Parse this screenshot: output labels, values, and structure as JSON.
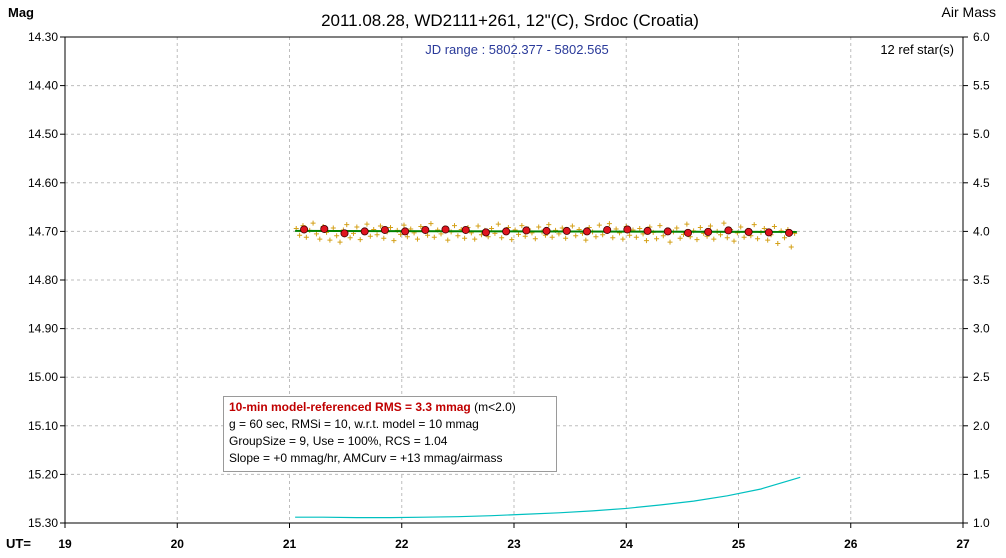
{
  "chart_data": {
    "type": "scatter",
    "title": "2011.08.28, WD2111+261, 12\"(C), Srdoc (Croatia)",
    "subtitle": "JD range : 5802.377 - 5802.565",
    "ref_stars": "12 ref star(s)",
    "ylabel": "Mag",
    "y2label": "Air Mass",
    "xlabel": "UT=",
    "xlim": [
      19,
      27
    ],
    "ylim": [
      14.3,
      15.3
    ],
    "y_inverted": true,
    "y2lim": [
      1.0,
      6.0
    ],
    "grid": true,
    "x_ticks": [
      "19",
      "20",
      "21",
      "22",
      "23",
      "24",
      "25",
      "26",
      "27"
    ],
    "y_ticks": [
      "14.30",
      "14.40",
      "14.50",
      "14.60",
      "14.70",
      "14.80",
      "14.90",
      "15.00",
      "15.10",
      "15.20",
      "15.30"
    ],
    "y2_ticks": [
      "6.0",
      "5.5",
      "5.0",
      "4.5",
      "4.0",
      "3.5",
      "3.0",
      "2.5",
      "2.0",
      "1.5",
      "1.0"
    ],
    "series": [
      {
        "kind": "raw",
        "color": "#d4a017",
        "x": [
          21.06,
          21.09,
          21.12,
          21.15,
          21.18,
          21.21,
          21.24,
          21.27,
          21.3,
          21.33,
          21.36,
          21.39,
          21.42,
          21.45,
          21.48,
          21.51,
          21.54,
          21.57,
          21.6,
          21.63,
          21.66,
          21.69,
          21.72,
          21.75,
          21.78,
          21.81,
          21.84,
          21.87,
          21.9,
          21.93,
          21.96,
          21.99,
          22.02,
          22.05,
          22.08,
          22.11,
          22.14,
          22.17,
          22.2,
          22.23,
          22.26,
          22.29,
          22.32,
          22.35,
          22.38,
          22.41,
          22.44,
          22.47,
          22.5,
          22.53,
          22.56,
          22.59,
          22.62,
          22.65,
          22.68,
          22.71,
          22.74,
          22.77,
          22.8,
          22.83,
          22.86,
          22.89,
          22.92,
          22.95,
          22.98,
          23.01,
          23.04,
          23.07,
          23.1,
          23.13,
          23.16,
          23.19,
          23.22,
          23.25,
          23.28,
          23.31,
          23.34,
          23.37,
          23.4,
          23.43,
          23.46,
          23.49,
          23.52,
          23.55,
          23.58,
          23.61,
          23.64,
          23.67,
          23.7,
          23.73,
          23.76,
          23.79,
          23.82,
          23.85,
          23.88,
          23.91,
          23.94,
          23.97,
          24.0,
          24.03,
          24.06,
          24.09,
          24.12,
          24.15,
          24.18,
          24.21,
          24.24,
          24.27,
          24.3,
          24.33,
          24.36,
          24.39,
          24.42,
          24.45,
          24.48,
          24.51,
          24.54,
          24.57,
          24.6,
          24.63,
          24.66,
          24.69,
          24.72,
          24.75,
          24.78,
          24.81,
          24.84,
          24.87,
          24.9,
          24.93,
          24.96,
          24.99,
          25.02,
          25.05,
          25.08,
          25.11,
          25.14,
          25.17,
          25.2,
          25.23,
          25.26,
          25.29,
          25.32,
          25.35,
          25.38,
          25.41,
          25.44,
          25.47,
          25.5
        ],
        "y": [
          14.694,
          14.708,
          14.688,
          14.712,
          14.698,
          14.683,
          14.705,
          14.716,
          14.69,
          14.702,
          14.718,
          14.693,
          14.709,
          14.722,
          14.697,
          14.686,
          14.713,
          14.704,
          14.691,
          14.717,
          14.7,
          14.685,
          14.71,
          14.696,
          14.707,
          14.689,
          14.714,
          14.701,
          14.692,
          14.719,
          14.698,
          14.706,
          14.687,
          14.711,
          14.695,
          14.703,
          14.716,
          14.69,
          14.699,
          14.708,
          14.684,
          14.712,
          14.697,
          14.705,
          14.693,
          14.718,
          14.701,
          14.688,
          14.709,
          14.696,
          14.714,
          14.692,
          14.703,
          14.716,
          14.689,
          14.707,
          14.698,
          14.711,
          14.694,
          14.704,
          14.685,
          14.713,
          14.7,
          14.692,
          14.717,
          14.697,
          14.706,
          14.688,
          14.71,
          14.695,
          14.703,
          14.715,
          14.691,
          14.701,
          14.708,
          14.686,
          14.712,
          14.698,
          14.705,
          14.693,
          14.714,
          14.7,
          14.689,
          14.709,
          14.696,
          14.704,
          14.718,
          14.692,
          14.701,
          14.711,
          14.687,
          14.707,
          14.699,
          14.684,
          14.713,
          14.695,
          14.703,
          14.716,
          14.69,
          14.708,
          14.697,
          14.712,
          14.694,
          14.705,
          14.719,
          14.691,
          14.702,
          14.715,
          14.688,
          14.709,
          14.698,
          14.722,
          14.701,
          14.693,
          14.714,
          14.706,
          14.685,
          14.711,
          14.699,
          14.717,
          14.692,
          14.704,
          14.71,
          14.689,
          14.716,
          14.7,
          14.707,
          14.683,
          14.713,
          14.696,
          14.72,
          14.703,
          14.691,
          14.712,
          14.698,
          14.709,
          14.686,
          14.715,
          14.702,
          14.694,
          14.718,
          14.707,
          14.69,
          14.725,
          14.699,
          14.713,
          14.696,
          14.732,
          14.704
        ]
      },
      {
        "kind": "binned",
        "color": "#e0141e",
        "x": [
          21.13,
          21.31,
          21.49,
          21.67,
          21.85,
          22.03,
          22.21,
          22.39,
          22.57,
          22.75,
          22.93,
          23.11,
          23.29,
          23.47,
          23.65,
          23.83,
          24.01,
          24.19,
          24.37,
          24.55,
          24.73,
          24.91,
          25.09,
          25.27,
          25.45
        ],
        "y": [
          14.696,
          14.695,
          14.704,
          14.7,
          14.697,
          14.7,
          14.697,
          14.696,
          14.697,
          14.702,
          14.7,
          14.698,
          14.699,
          14.699,
          14.7,
          14.697,
          14.696,
          14.699,
          14.7,
          14.703,
          14.701,
          14.698,
          14.701,
          14.702,
          14.703
        ]
      },
      {
        "kind": "model",
        "color": "#008000",
        "x": [
          21.05,
          25.52
        ],
        "y": [
          14.699,
          14.701
        ]
      },
      {
        "kind": "airmass",
        "color": "#00c0c0",
        "axis": "y2",
        "x": [
          21.05,
          21.3,
          21.6,
          21.9,
          22.2,
          22.5,
          22.8,
          23.1,
          23.4,
          23.7,
          24.0,
          24.3,
          24.6,
          24.9,
          25.2,
          25.55
        ],
        "y": [
          1.06,
          1.06,
          1.055,
          1.055,
          1.06,
          1.065,
          1.075,
          1.09,
          1.105,
          1.125,
          1.15,
          1.185,
          1.225,
          1.28,
          1.35,
          1.47
        ]
      }
    ]
  },
  "info_box": {
    "line1_highlight": "10-min model-referenced RMS = 3.3 mmag",
    "line1_rest": " (m<2.0)",
    "line2": "g = 60 sec, RMSi = 10, w.r.t. model = 10 mmag",
    "line3": "GroupSize = 9, Use = 100%, RCS = 1.04",
    "line4": "Slope = +0 mmag/hr, AMCurv = +13 mmag/airmass"
  }
}
